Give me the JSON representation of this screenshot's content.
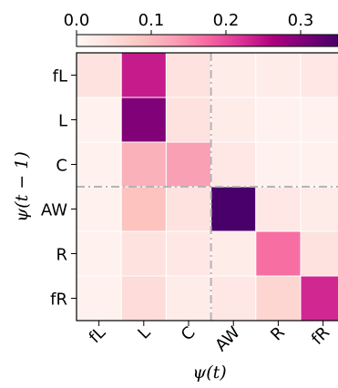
{
  "chart_data": {
    "type": "heatmap",
    "xlabel": "ψ(t)",
    "ylabel": "ψ(t − 1)",
    "x_categories": [
      "fL",
      "L",
      "C",
      "AW",
      "R",
      "fR"
    ],
    "y_categories": [
      "fL",
      "L",
      "C",
      "AW",
      "R",
      "fR"
    ],
    "values": [
      [
        0.04,
        0.24,
        0.04,
        0.02,
        0.02,
        0.03
      ],
      [
        0.01,
        0.3,
        0.04,
        0.02,
        0.01,
        0.01
      ],
      [
        0.01,
        0.11,
        0.13,
        0.03,
        0.01,
        0.01
      ],
      [
        0.01,
        0.09,
        0.04,
        0.38,
        0.03,
        0.02
      ],
      [
        0.01,
        0.04,
        0.03,
        0.02,
        0.17,
        0.04
      ],
      [
        0.01,
        0.05,
        0.02,
        0.03,
        0.06,
        0.23
      ]
    ],
    "colorbar": {
      "range": [
        0.0,
        0.35
      ],
      "ticks": [
        0.0,
        0.1,
        0.2,
        0.3
      ],
      "tick_labels": [
        "0.0",
        "0.1",
        "0.2",
        "0.3"
      ],
      "colormap": "RdPu"
    },
    "divider_lines": {
      "x_after_index": 2,
      "y_after_index": 2,
      "style": "dash-dot",
      "color": "#b4b4b4"
    }
  }
}
